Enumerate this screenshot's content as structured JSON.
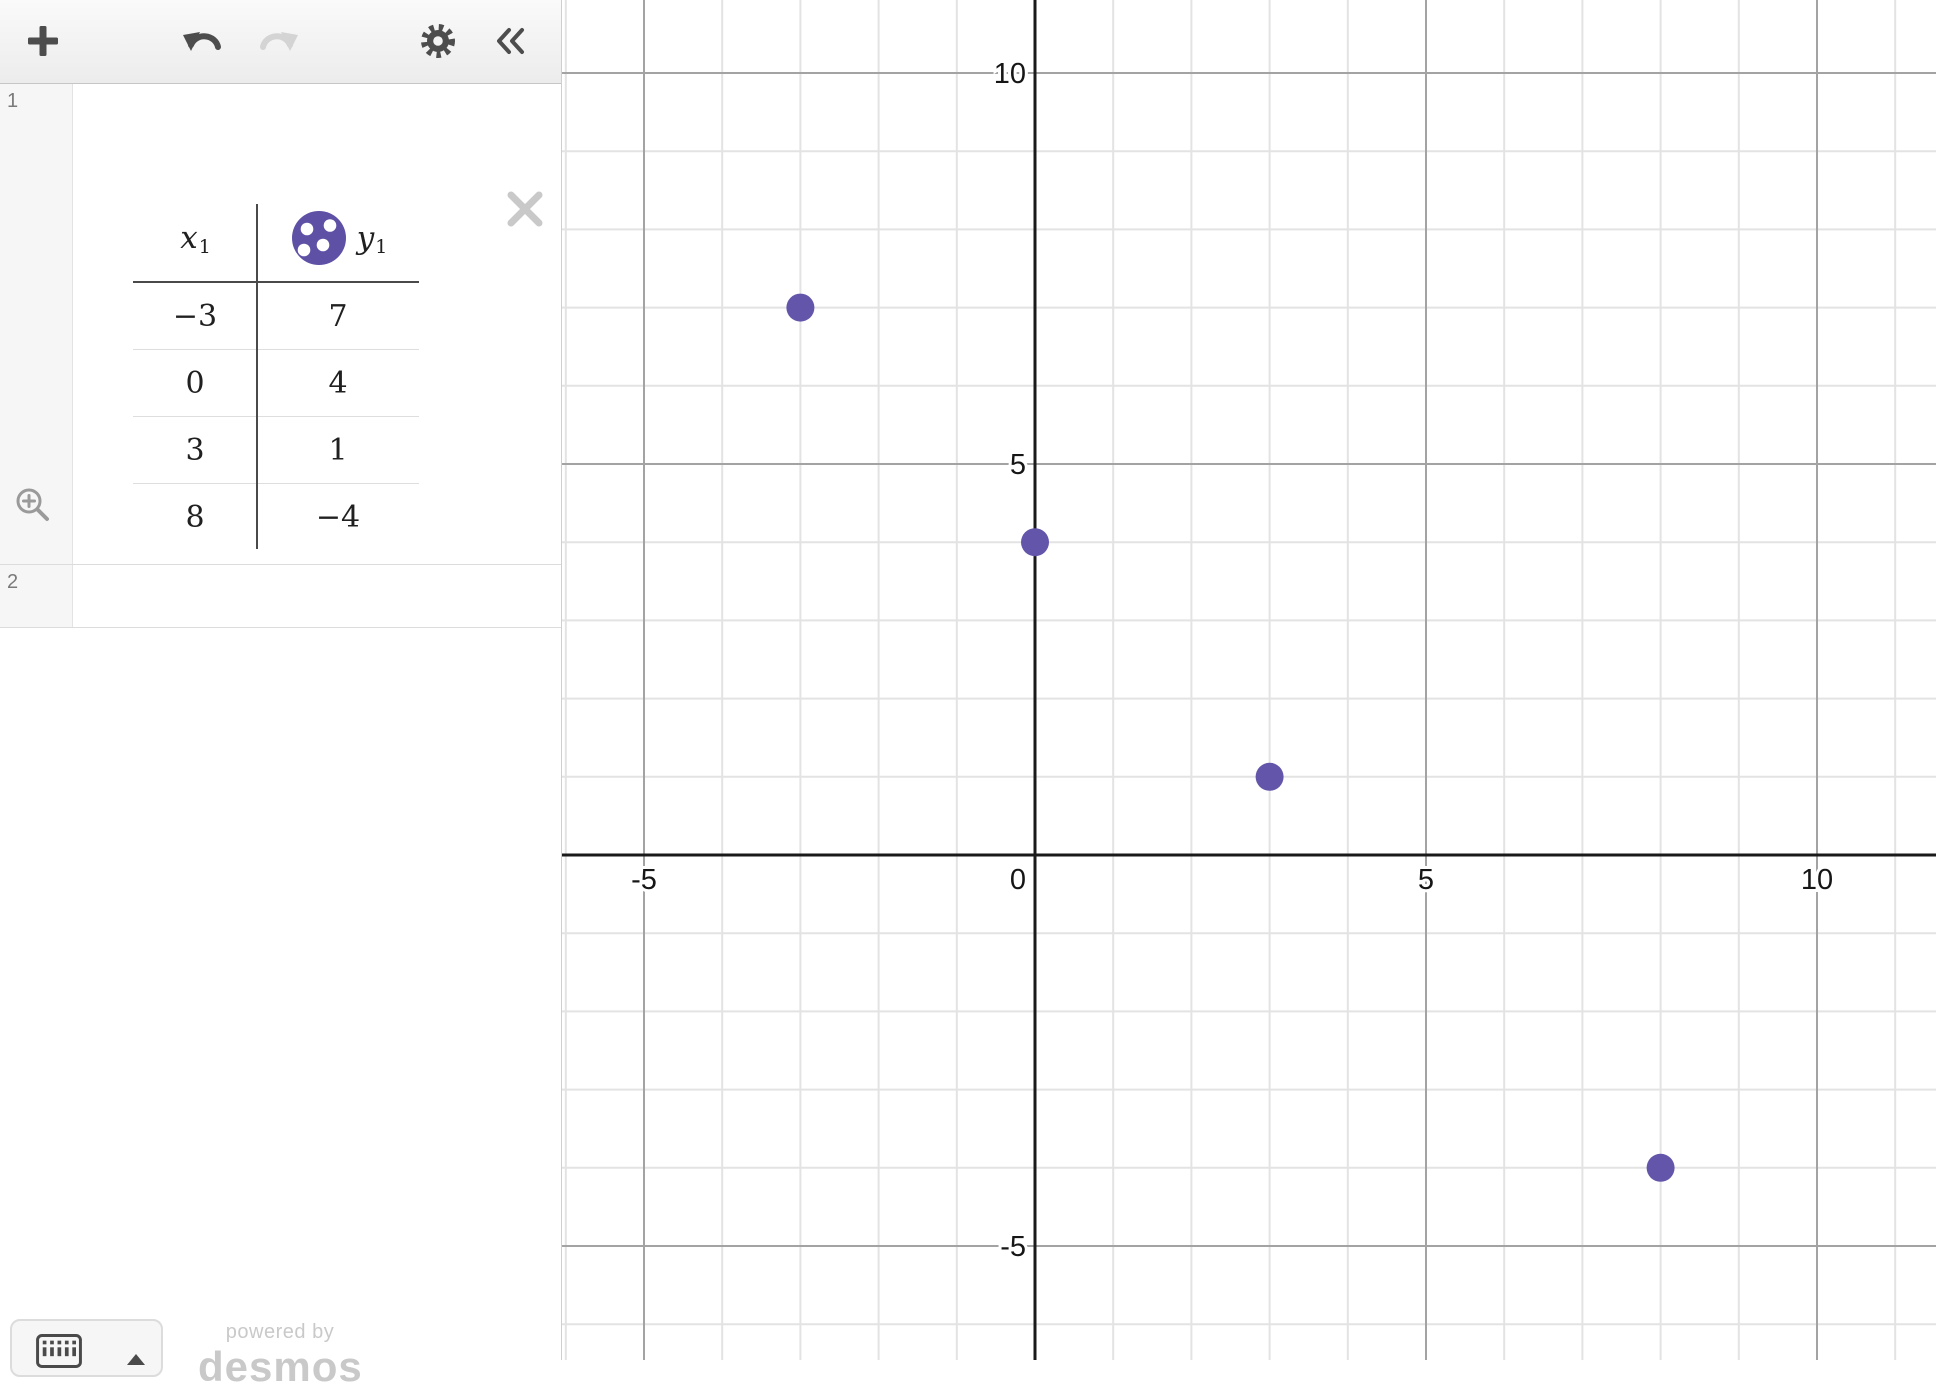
{
  "toolbar": {
    "icons": [
      "plus-icon",
      "undo-icon",
      "redo-icon",
      "gear-icon",
      "collapse-icon"
    ],
    "undo_enabled": true,
    "redo_enabled": false
  },
  "expression_list": {
    "item1": {
      "index": "1",
      "table": {
        "columns": [
          {
            "name": "x",
            "sub": "1"
          },
          {
            "name": "y",
            "sub": "1",
            "style_icon": "scatter-points-icon"
          }
        ],
        "rows": [
          [
            "−3",
            "7"
          ],
          [
            "0",
            "4"
          ],
          [
            "3",
            "1"
          ],
          [
            "8",
            "−4"
          ]
        ]
      }
    },
    "item2": {
      "index": "2"
    }
  },
  "branding": {
    "powered_by": "powered by",
    "brand": "desmos"
  },
  "colors": {
    "point": "#6356aa",
    "axis": "#1a1a1a",
    "grid_minor": "#e3e3e3",
    "grid_major": "#a3a3a3",
    "tick_label": "#161616"
  },
  "chart_data": {
    "type": "scatter",
    "title": "",
    "xlabel": "",
    "ylabel": "",
    "points": [
      {
        "x": -3,
        "y": 7
      },
      {
        "x": 0,
        "y": 4
      },
      {
        "x": 3,
        "y": 1
      },
      {
        "x": 8,
        "y": -4
      }
    ],
    "x_ticks": [
      {
        "label": "-5",
        "value": -5
      },
      {
        "label": "0",
        "value": 0
      },
      {
        "label": "5",
        "value": 5
      },
      {
        "label": "10",
        "value": 10
      }
    ],
    "y_ticks": [
      {
        "label": "-5",
        "value": -5
      },
      {
        "label": "5",
        "value": 5
      },
      {
        "label": "10",
        "value": 10
      }
    ],
    "minor_unit": 1,
    "major_unit": 5,
    "grid": true,
    "x_range_visible": [
      -6.1,
      11.5
    ],
    "y_range_visible": [
      -6.5,
      10.9
    ]
  }
}
